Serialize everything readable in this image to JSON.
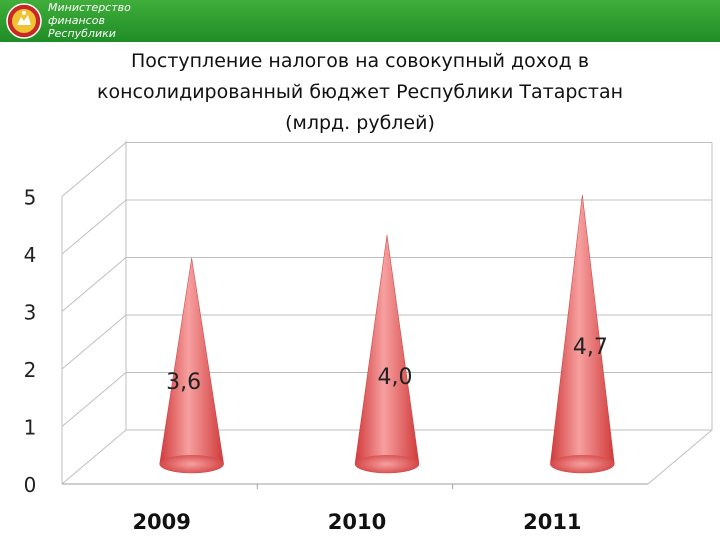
{
  "header": {
    "ministry_lines": [
      "Министерство",
      "финансов",
      "Республики"
    ]
  },
  "title_lines": [
    "Поступление налогов на совокупный доход в",
    "консолидированный бюджет Республики Татарстан",
    "(млрд. рублей)"
  ],
  "colors": {
    "header_green": "#2a9a2e",
    "cone_light": "#f7a0a0",
    "cone_dark": "#d03a3a",
    "grid": "#bfbfbf"
  },
  "chart_data": {
    "type": "bar",
    "shape": "cone-3d",
    "title": "Поступление налогов на совокупный доход в консолидированный бюджет Республики Татарстан (млрд. рублей)",
    "categories": [
      "2009",
      "2010",
      "2011"
    ],
    "values": [
      3.6,
      4.0,
      4.7
    ],
    "data_labels": [
      "3,6",
      "4,0",
      "4,7"
    ],
    "y_ticks": [
      "0",
      "1",
      "2",
      "3",
      "4",
      "5"
    ],
    "ylim": [
      0,
      5
    ],
    "grid": true,
    "legend": "none"
  }
}
